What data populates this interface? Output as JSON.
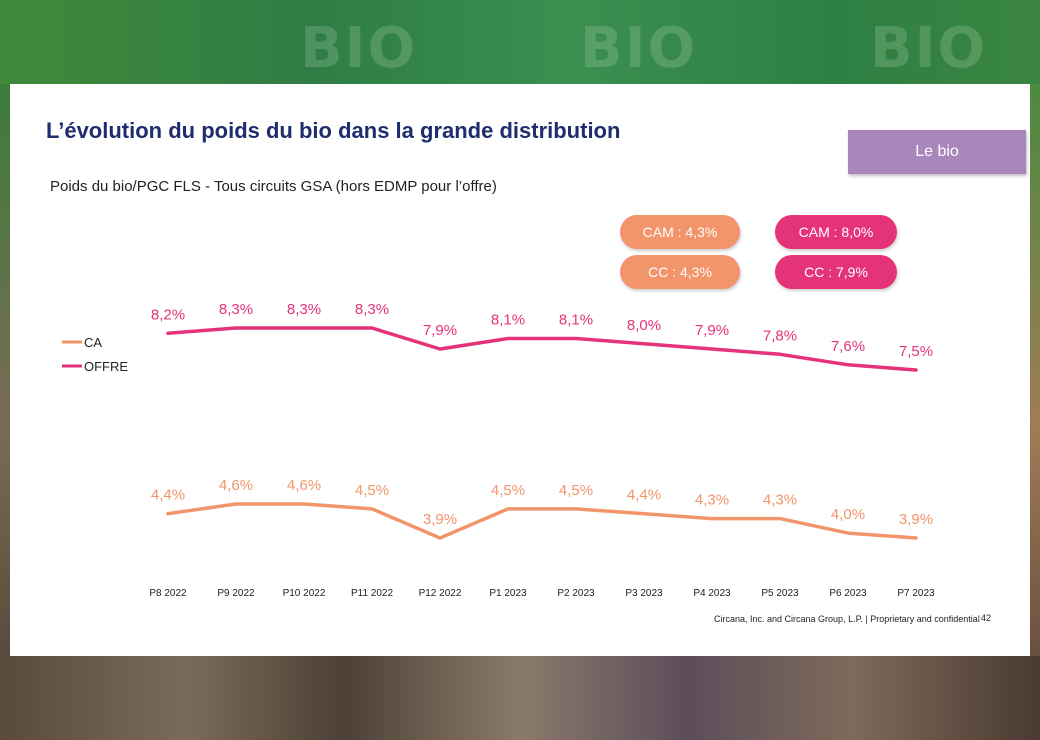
{
  "slide": {
    "title": "L’évolution du poids du bio dans la grande distribution",
    "tag": "Le bio",
    "subtitle": "Poids du bio/PGC FLS  - Tous circuits GSA (hors EDMP pour l’offre)",
    "footer": "Circana, Inc. and Circana Group, L.P. |  Proprietary and confidential",
    "page_number": "42"
  },
  "background": {
    "watermark": [
      "BIO",
      "BIO",
      "BIO"
    ]
  },
  "badges": {
    "ca_cam": "CAM : 4,3%",
    "ca_cc": "CC : 4,3%",
    "offre_cam": "CAM : 8,0%",
    "offre_cc": "CC : 7,9%"
  },
  "colors": {
    "title": "#1f2d6e",
    "ca": "#f2956a",
    "offre": "#e5337a",
    "tag": "#a987bd"
  },
  "chart_data": {
    "type": "line",
    "categories": [
      "P8  2022",
      "P9  2022",
      "P10 2022",
      "P11 2022",
      "P12 2022",
      "P1  2023",
      "P2  2023",
      "P3  2023",
      "P4  2023",
      "P5  2023",
      "P6  2023",
      "P7  2023"
    ],
    "series": [
      {
        "name": "OFFRE",
        "color": "#e5337a",
        "values": [
          8.2,
          8.3,
          8.3,
          8.3,
          7.9,
          8.1,
          8.1,
          8.0,
          7.9,
          7.8,
          7.6,
          7.5
        ],
        "labels": [
          "8,2%",
          "8,3%",
          "8,3%",
          "8,3%",
          "7,9%",
          "8,1%",
          "8,1%",
          "8,0%",
          "7,9%",
          "7,8%",
          "7,6%",
          "7,5%"
        ]
      },
      {
        "name": "CA",
        "color": "#f2956a",
        "values": [
          4.4,
          4.6,
          4.6,
          4.5,
          3.9,
          4.5,
          4.5,
          4.4,
          4.3,
          4.3,
          4.0,
          3.9
        ],
        "labels": [
          "4,4%",
          "4,6%",
          "4,6%",
          "4,5%",
          "3,9%",
          "4,5%",
          "4,5%",
          "4,4%",
          "4,3%",
          "4,3%",
          "4,0%",
          "3,9%"
        ]
      }
    ],
    "legend": [
      "CA",
      "OFFRE"
    ],
    "legend_position": "left",
    "grid": false,
    "y_axis_visible": false,
    "title": "",
    "xlabel": "",
    "ylabel": ""
  }
}
